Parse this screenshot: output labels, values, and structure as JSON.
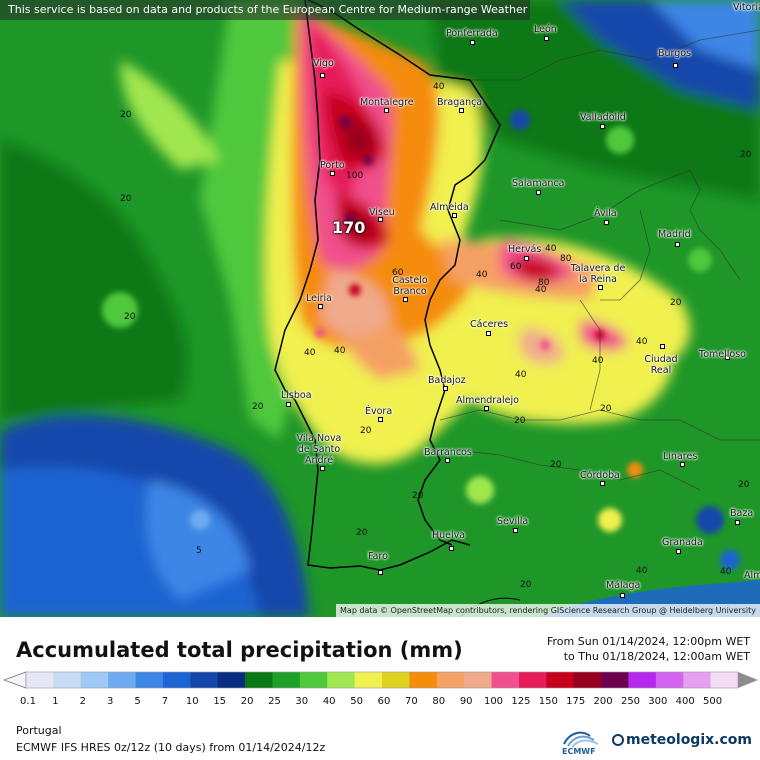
{
  "banner": "This service is based on data and products of the European Centre for Medium-range Weather Forecasts (ECMWF)",
  "attribution": "Map data © OpenStreetMap contributors, rendering GIScience Research Group @ Heidelberg University",
  "title": "Accumulated total precipitation (mm)",
  "period_from": "From Sun 01/14/2024, 12:00pm WET",
  "period_to": "to Thu 01/18/2024, 12:00am WET",
  "region": "Portugal",
  "model": "ECMWF IFS HRES 0z/12z (10 days) from 01/14/2024/12z",
  "brand": "meteologix.com",
  "ecmwf_logo": "ECMWF",
  "max_value_label": "170",
  "legend": {
    "ticks": [
      "0.1",
      "1",
      "2",
      "3",
      "5",
      "7",
      "10",
      "15",
      "20",
      "25",
      "30",
      "40",
      "50",
      "60",
      "70",
      "80",
      "90",
      "100",
      "125",
      "150",
      "175",
      "200",
      "250",
      "300",
      "400",
      "500"
    ],
    "colors": [
      "#e6e6f5",
      "#c6dcf5",
      "#9ec8f5",
      "#6eaaf0",
      "#3c86e6",
      "#1e64d2",
      "#1446aa",
      "#0a2d82",
      "#0a7814",
      "#1ea028",
      "#50c83c",
      "#a0e650",
      "#f0f050",
      "#dcd21e",
      "#f58c0a",
      "#f5a064",
      "#f0aa8c",
      "#f0508c",
      "#e61e5a",
      "#c8001e",
      "#96001e",
      "#6e0050",
      "#b428f0",
      "#d264f0",
      "#e6a0f0",
      "#f5dcf5"
    ]
  },
  "cities": [
    {
      "name": "Vitoria-G",
      "kind": "corner"
    },
    {
      "name": "Ponferrada"
    },
    {
      "name": "León"
    },
    {
      "name": "Burgos"
    },
    {
      "name": "Vigo"
    },
    {
      "name": "Montalegre"
    },
    {
      "name": "Bragança"
    },
    {
      "name": "Valladolid"
    },
    {
      "name": "Porto"
    },
    {
      "name": "Salamanca"
    },
    {
      "name": "Viseu"
    },
    {
      "name": "Almeida"
    },
    {
      "name": "Ávila"
    },
    {
      "name": "Madrid"
    },
    {
      "name": "Hervás"
    },
    {
      "name": "Talavera de la Reina"
    },
    {
      "name": "Leiria"
    },
    {
      "name": "Castelo Branco"
    },
    {
      "name": "Cáceres"
    },
    {
      "name": "Ciudad Real"
    },
    {
      "name": "Tomelloso"
    },
    {
      "name": "Lisboa"
    },
    {
      "name": "Badajoz"
    },
    {
      "name": "Almendralejo"
    },
    {
      "name": "Évora"
    },
    {
      "name": "Vila Nova de Santo André"
    },
    {
      "name": "Barrancos"
    },
    {
      "name": "Córdoba"
    },
    {
      "name": "Linares"
    },
    {
      "name": "Huelva"
    },
    {
      "name": "Sevilla"
    },
    {
      "name": "Baza"
    },
    {
      "name": "Faro"
    },
    {
      "name": "Granada"
    },
    {
      "name": "Málaga"
    },
    {
      "name": "Alm"
    }
  ],
  "contour_labels": [
    "20",
    "20",
    "20",
    "20",
    "20",
    "20",
    "20",
    "20",
    "20",
    "20",
    "20",
    "20",
    "20",
    "20",
    "40",
    "40",
    "40",
    "40",
    "40",
    "40",
    "40",
    "40",
    "40",
    "40",
    "40",
    "60",
    "60",
    "80",
    "80",
    "100",
    "5"
  ]
}
